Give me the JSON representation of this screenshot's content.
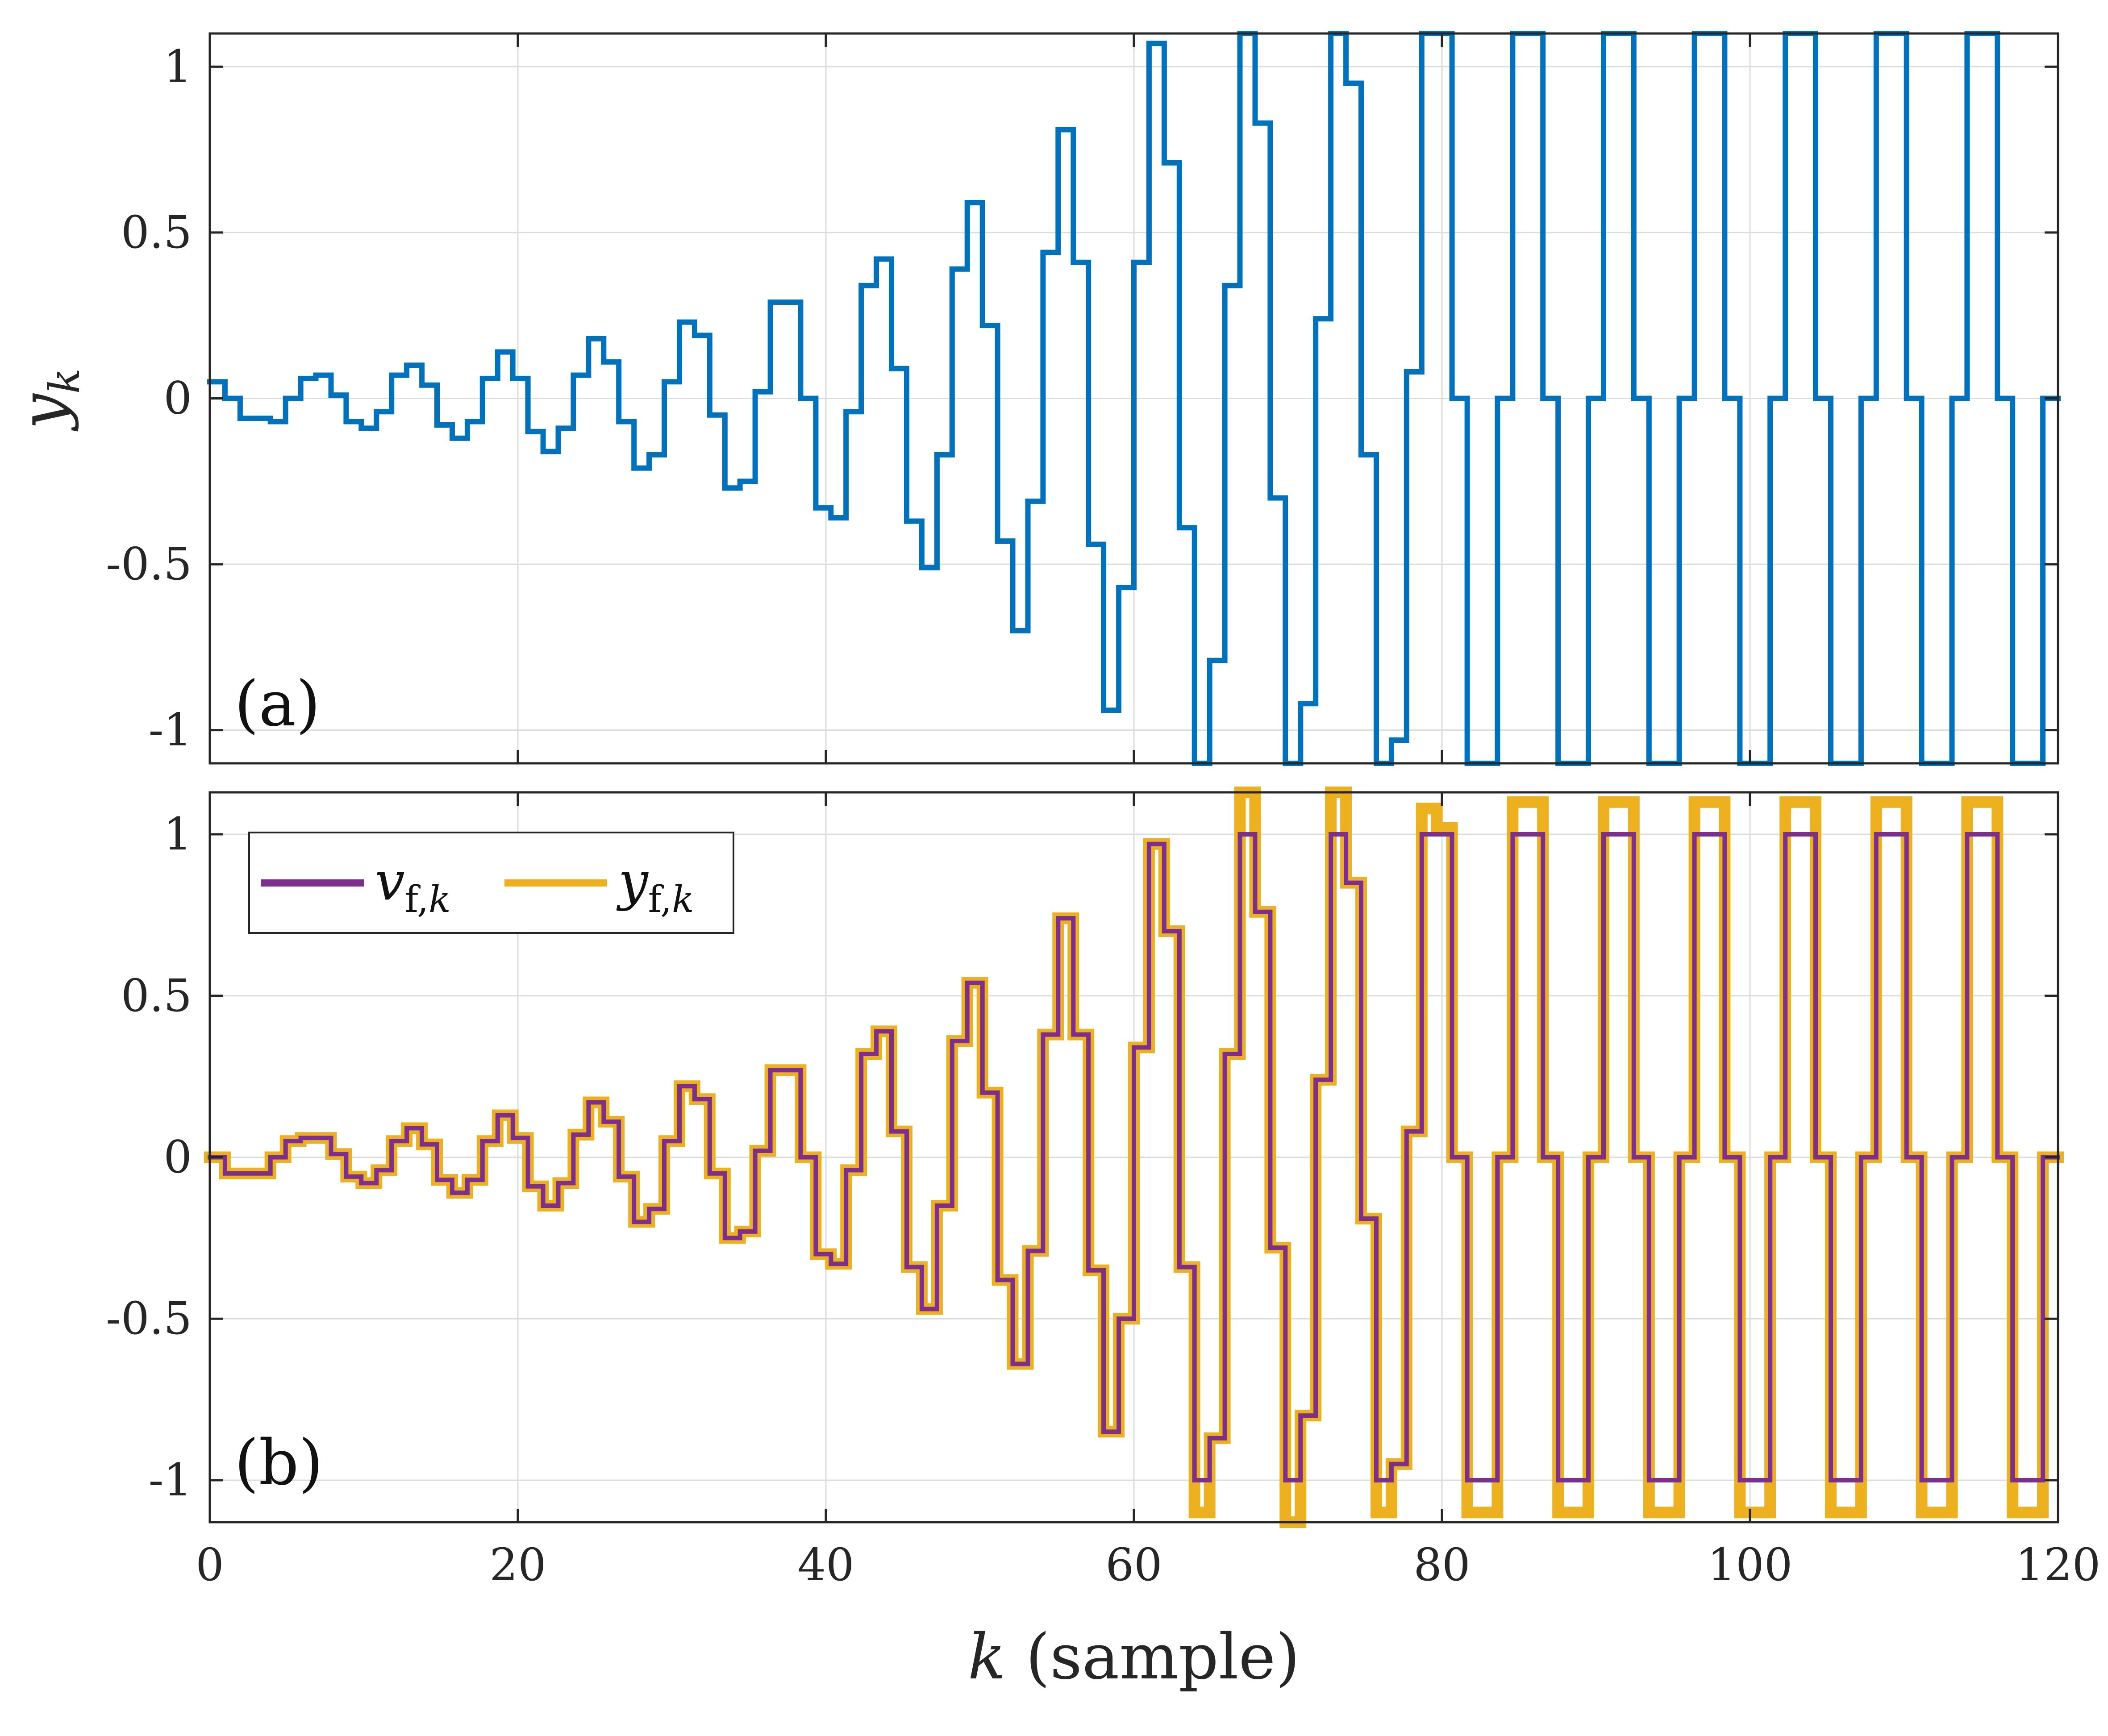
{
  "chart_data": [
    {
      "panel": "(a)",
      "type": "line",
      "step": true,
      "x_start": 0,
      "x_end": 120,
      "xlim": [
        0,
        120
      ],
      "ylim": [
        -1.1,
        1.1
      ],
      "ylabel": "y_k",
      "grid": true,
      "yticks": [
        -1,
        -0.5,
        0,
        0.5,
        1
      ],
      "ytick_labels": [
        "-1",
        "-0.5",
        "0",
        "0.5",
        "1"
      ],
      "series": [
        {
          "name": "y_k",
          "color": "#0072BD",
          "values": [
            0.05,
            0.0,
            -0.06,
            -0.06,
            -0.07,
            0.0,
            0.06,
            0.07,
            0.01,
            -0.07,
            -0.09,
            -0.04,
            0.07,
            0.1,
            0.04,
            -0.08,
            -0.12,
            -0.07,
            0.06,
            0.14,
            0.06,
            -0.1,
            -0.16,
            -0.09,
            0.07,
            0.18,
            0.11,
            -0.07,
            -0.21,
            -0.17,
            0.05,
            0.23,
            0.19,
            -0.05,
            -0.27,
            -0.25,
            0.02,
            0.29,
            0.29,
            0.0,
            -0.33,
            -0.36,
            -0.04,
            0.34,
            0.42,
            0.09,
            -0.37,
            -0.51,
            -0.17,
            0.39,
            0.59,
            0.22,
            -0.43,
            -0.7,
            -0.31,
            0.44,
            0.81,
            0.41,
            -0.44,
            -0.94,
            -0.57,
            0.41,
            1.07,
            0.71,
            -0.39,
            -1.1,
            -0.79,
            0.34,
            1.1,
            0.83,
            -0.3,
            -1.1,
            -0.92,
            0.24,
            1.1,
            0.95,
            -0.17,
            -1.1,
            -1.03,
            0.08,
            1.1,
            1.1,
            0,
            -1.1,
            -1.1,
            0,
            1.1,
            1.1,
            0,
            -1.1,
            -1.1,
            0,
            1.1,
            1.1,
            0,
            -1.1,
            -1.1,
            0,
            1.1,
            1.1,
            0,
            -1.1,
            -1.1,
            0,
            1.1,
            1.1,
            0,
            -1.1,
            -1.1,
            0,
            1.1,
            1.1,
            0,
            -1.1,
            -1.1,
            0,
            1.1,
            1.1,
            0,
            -1.1,
            -1.1,
            0
          ]
        }
      ]
    },
    {
      "panel": "(b)",
      "type": "line",
      "step": true,
      "x_start": 0,
      "x_end": 120,
      "xlim": [
        0,
        120
      ],
      "ylim": [
        -1.13,
        1.13
      ],
      "xlabel": "k (sample)",
      "grid": true,
      "xticks": [
        0,
        20,
        40,
        60,
        80,
        100,
        120
      ],
      "xtick_labels": [
        "0",
        "20",
        "40",
        "60",
        "80",
        "100",
        "120"
      ],
      "yticks": [
        -1,
        -0.5,
        0,
        0.5,
        1
      ],
      "ytick_labels": [
        "-1",
        "-0.5",
        "0",
        "0.5",
        "1"
      ],
      "legend": {
        "position": "top-left",
        "entries": [
          "v_{f,k}",
          "y_{f,k}"
        ]
      },
      "series": [
        {
          "name": "y_{f,k}",
          "color": "#EDB120",
          "values": [
            0.0,
            -0.05,
            -0.05,
            -0.05,
            0.0,
            0.05,
            0.06,
            0.06,
            0.01,
            -0.06,
            -0.08,
            -0.04,
            0.05,
            0.09,
            0.04,
            -0.07,
            -0.11,
            -0.07,
            0.05,
            0.13,
            0.06,
            -0.09,
            -0.15,
            -0.08,
            0.07,
            0.17,
            0.11,
            -0.06,
            -0.2,
            -0.16,
            0.05,
            0.22,
            0.18,
            -0.05,
            -0.25,
            -0.23,
            0.02,
            0.27,
            0.27,
            0.0,
            -0.3,
            -0.33,
            -0.04,
            0.32,
            0.39,
            0.08,
            -0.34,
            -0.47,
            -0.15,
            0.36,
            0.54,
            0.2,
            -0.38,
            -0.64,
            -0.29,
            0.38,
            0.74,
            0.38,
            -0.35,
            -0.85,
            -0.5,
            0.34,
            0.97,
            0.7,
            -0.34,
            -1.1,
            -0.87,
            0.32,
            1.13,
            0.76,
            -0.28,
            -1.13,
            -0.8,
            0.24,
            1.13,
            0.85,
            -0.19,
            -1.1,
            -0.95,
            0.08,
            1.08,
            1.02,
            0,
            -1.1,
            -1.1,
            0,
            1.1,
            1.1,
            0,
            -1.1,
            -1.1,
            0,
            1.1,
            1.1,
            0,
            -1.1,
            -1.1,
            0,
            1.1,
            1.1,
            0,
            -1.1,
            -1.1,
            0,
            1.1,
            1.1,
            0,
            -1.1,
            -1.1,
            0,
            1.1,
            1.1,
            0,
            -1.1,
            -1.1,
            0,
            1.1,
            1.1,
            0,
            -1.1,
            -1.1,
            0
          ]
        },
        {
          "name": "v_{f,k}",
          "color": "#7E2F8E",
          "values": [
            0.0,
            -0.05,
            -0.05,
            -0.05,
            0.0,
            0.05,
            0.06,
            0.06,
            0.01,
            -0.06,
            -0.08,
            -0.04,
            0.05,
            0.09,
            0.04,
            -0.07,
            -0.11,
            -0.07,
            0.05,
            0.13,
            0.06,
            -0.09,
            -0.15,
            -0.08,
            0.07,
            0.17,
            0.11,
            -0.06,
            -0.2,
            -0.16,
            0.05,
            0.22,
            0.18,
            -0.05,
            -0.25,
            -0.23,
            0.02,
            0.27,
            0.27,
            0.0,
            -0.3,
            -0.33,
            -0.04,
            0.32,
            0.39,
            0.08,
            -0.34,
            -0.47,
            -0.15,
            0.36,
            0.54,
            0.2,
            -0.38,
            -0.64,
            -0.29,
            0.38,
            0.74,
            0.38,
            -0.35,
            -0.85,
            -0.5,
            0.34,
            0.97,
            0.7,
            -0.34,
            -1.0,
            -0.87,
            0.32,
            1.0,
            0.76,
            -0.28,
            -1.0,
            -0.8,
            0.24,
            1.0,
            0.85,
            -0.19,
            -1.0,
            -0.95,
            0.08,
            1.0,
            1.0,
            0,
            -1.0,
            -1.0,
            0,
            1.0,
            1.0,
            0,
            -1.0,
            -1.0,
            0,
            1.0,
            1.0,
            0,
            -1.0,
            -1.0,
            0,
            1.0,
            1.0,
            0,
            -1.0,
            -1.0,
            0,
            1.0,
            1.0,
            0,
            -1.0,
            -1.0,
            0,
            1.0,
            1.0,
            0,
            -1.0,
            -1.0,
            0,
            1.0,
            1.0,
            0,
            -1.0,
            -1.0,
            0
          ]
        }
      ]
    }
  ]
}
